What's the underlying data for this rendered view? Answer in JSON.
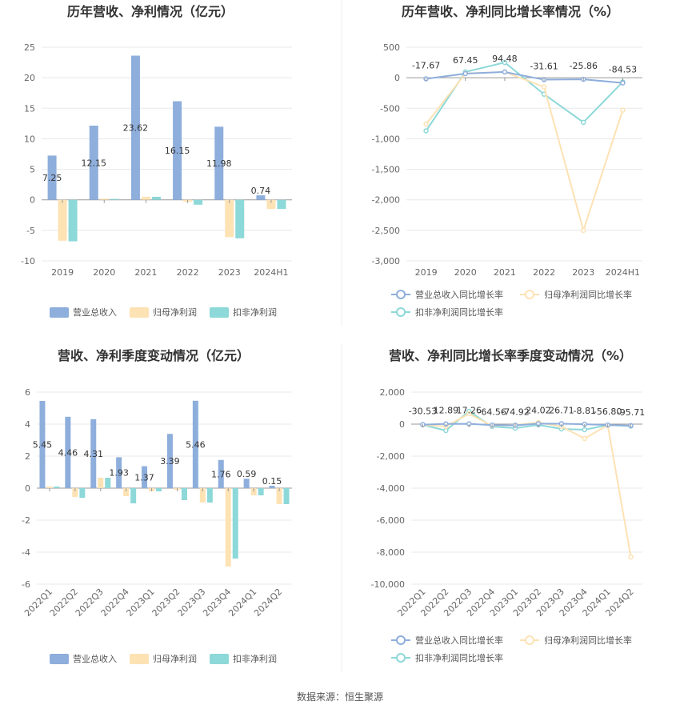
{
  "source": "数据来源：恒生聚源",
  "colors": {
    "revenue_bar": "#8eaedc",
    "parent_np_bar": "#fde2b4",
    "deducted_np_bar": "#8dd8d8",
    "revenue_line": "#8eaedc",
    "parent_np_line": "#fde2b4",
    "deducted_np_line": "#8dd8d8"
  },
  "chart_data": [
    {
      "type": "bar",
      "title": "历年营收、净利情况（亿元）",
      "categories": [
        "2019",
        "2020",
        "2021",
        "2022",
        "2023",
        "2024H1"
      ],
      "ylim": [
        -10,
        25
      ],
      "yticks": [
        -10,
        -5,
        0,
        5,
        10,
        15,
        20,
        25
      ],
      "ytick_labels": [
        "-10",
        "-5",
        "0",
        "5",
        "10",
        "15",
        "20",
        "25"
      ],
      "series": [
        {
          "name": "营业总收入",
          "values": [
            7.25,
            12.15,
            23.62,
            16.15,
            11.98,
            0.74
          ],
          "labels": [
            "7.25",
            "12.15",
            "23.62",
            "16.15",
            "11.98",
            "0.74"
          ]
        },
        {
          "name": "归母净利润",
          "values": [
            -6.7,
            0.2,
            0.5,
            -0.3,
            -6.1,
            -1.5
          ]
        },
        {
          "name": "扣非净利润",
          "values": [
            -6.8,
            0.15,
            0.5,
            -0.8,
            -6.3,
            -1.5
          ]
        }
      ],
      "legend": "bottom"
    },
    {
      "type": "line",
      "title": "历年营收、净利同比增长率情况（%）",
      "categories": [
        "2019",
        "2020",
        "2021",
        "2022",
        "2023",
        "2024H1"
      ],
      "ylim": [
        -3000,
        500
      ],
      "yticks": [
        -3000,
        -2500,
        -2000,
        -1500,
        -1000,
        -500,
        0,
        500
      ],
      "ytick_labels": [
        "-3,000",
        "-2,500",
        "-2,000",
        "-1,500",
        "-1,000",
        "-500",
        "0",
        "500"
      ],
      "series": [
        {
          "name": "营业总收入同比增长率",
          "values": [
            -17.67,
            67.45,
            94.48,
            -31.61,
            -25.86,
            -84.53
          ],
          "labels": [
            "-17.67",
            "67.45",
            "94.48",
            "-31.61",
            "-25.86",
            "-84.53"
          ]
        },
        {
          "name": "归母净利润同比增长率",
          "values": [
            -760,
            70,
            95,
            -150,
            -2500,
            -530
          ]
        },
        {
          "name": "扣非净利润同比增长率",
          "values": [
            -870,
            95,
            250,
            -270,
            -730,
            -70
          ]
        }
      ],
      "legend": "bottom"
    },
    {
      "type": "bar",
      "title": "营收、净利季度变动情况（亿元）",
      "categories": [
        "2022Q1",
        "2022Q2",
        "2022Q3",
        "2022Q4",
        "2023Q1",
        "2023Q2",
        "2023Q3",
        "2023Q4",
        "2024Q1",
        "2024Q2"
      ],
      "ylim": [
        -6,
        6
      ],
      "yticks": [
        -6,
        -4,
        -2,
        0,
        2,
        4,
        6
      ],
      "ytick_labels": [
        "-6",
        "-4",
        "-2",
        "0",
        "2",
        "4",
        "6"
      ],
      "series": [
        {
          "name": "营业总收入",
          "values": [
            5.45,
            4.46,
            4.31,
            1.93,
            1.37,
            3.39,
            5.46,
            1.76,
            0.59,
            0.15
          ],
          "labels": [
            "5.45",
            "4.46",
            "4.31",
            "1.93",
            "1.37",
            "3.39",
            "5.46",
            "1.76",
            "0.59",
            "0.15"
          ]
        },
        {
          "name": "归母净利润",
          "values": [
            0.1,
            -0.55,
            0.65,
            -0.5,
            -0.2,
            -0.1,
            -0.9,
            -4.9,
            -0.45,
            -1.0
          ]
        },
        {
          "name": "扣非净利润",
          "values": [
            0.1,
            -0.6,
            0.65,
            -0.95,
            -0.2,
            -0.75,
            -0.9,
            -4.4,
            -0.45,
            -1.0
          ]
        }
      ],
      "legend": "bottom"
    },
    {
      "type": "line",
      "title": "营收、净利同比增长率季度变动情况（%）",
      "categories": [
        "2022Q1",
        "2022Q2",
        "2022Q3",
        "2022Q4",
        "2023Q1",
        "2023Q2",
        "2023Q3",
        "2023Q4",
        "2024Q1",
        "2024Q2"
      ],
      "ylim": [
        -10000,
        2000
      ],
      "yticks": [
        -10000,
        -8000,
        -6000,
        -4000,
        -2000,
        0,
        2000
      ],
      "ytick_labels": [
        "-10,000",
        "-8,000",
        "-6,000",
        "-4,000",
        "-2,000",
        "0",
        "2,000"
      ],
      "series": [
        {
          "name": "营业总收入同比增长率",
          "values": [
            -30.53,
            12.89,
            17.26,
            -64.56,
            -74.92,
            24.02,
            26.71,
            -8.81,
            -56.8,
            -95.71
          ],
          "labels": [
            "-30.53",
            "12.89",
            "17.26",
            "-64.56",
            "-74.92",
            "24.02",
            "26.71",
            "-8.81",
            "-56.80",
            "-95.71"
          ]
        },
        {
          "name": "归母净利润同比增长率",
          "values": [
            -50,
            -150,
            650,
            -100,
            -50,
            100,
            -150,
            -900,
            -60,
            -8300
          ]
        },
        {
          "name": "扣非净利润同比增长率",
          "values": [
            -50,
            -400,
            800,
            -150,
            -250,
            -50,
            -300,
            -350,
            -60,
            -120
          ]
        }
      ],
      "legend": "bottom"
    }
  ]
}
